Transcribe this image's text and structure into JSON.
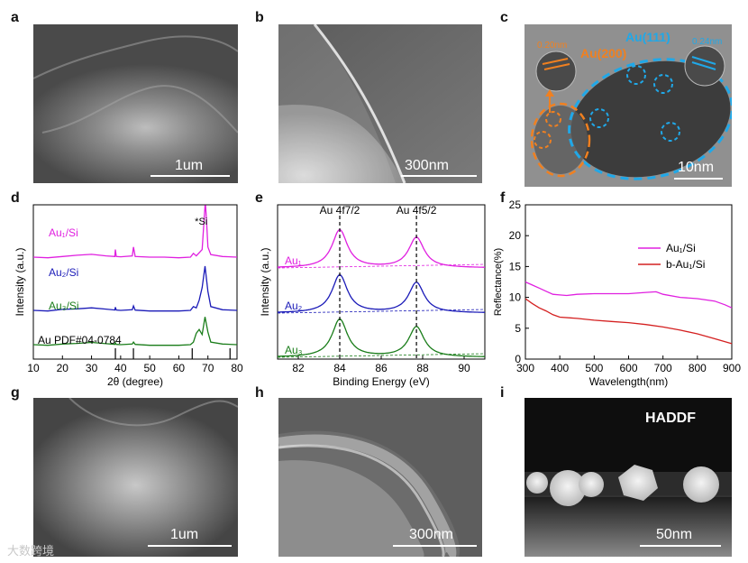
{
  "panels": {
    "a": {
      "label": "a",
      "scale": "1um"
    },
    "b": {
      "label": "b",
      "scale": "300nm"
    },
    "c": {
      "label": "c",
      "scale": "10nm",
      "lattice1": "0.20nm",
      "lattice2": "0.24nm",
      "plane_orange": "Au(200)",
      "plane_blue": "Au(111)"
    },
    "d": {
      "label": "d"
    },
    "e": {
      "label": "e"
    },
    "f": {
      "label": "f"
    },
    "g": {
      "label": "g",
      "scale": "1um"
    },
    "h": {
      "label": "h",
      "scale": "300nm"
    },
    "i": {
      "label": "i",
      "scale": "50nm",
      "mode": "HADDF"
    }
  },
  "watermark": "大数跨境",
  "colors": {
    "magenta": "#e020e0",
    "blue": "#1b1bb8",
    "green": "#1a7d1a",
    "red": "#d42020",
    "orange": "#f08020",
    "cyan": "#20a8e8"
  },
  "chart_data": [
    {
      "id": "d",
      "type": "line",
      "xlabel": "2θ (degree)",
      "ylabel": "Intensity (a.u.)",
      "xlim": [
        10,
        80
      ],
      "xticks": [
        10,
        20,
        30,
        40,
        50,
        60,
        70,
        80
      ],
      "reference_label": "Au PDF#04-0784",
      "reference_peaks": [
        38.2,
        44.4,
        64.6,
        77.6
      ],
      "annotation": "*Si",
      "series": [
        {
          "name": "Au₁/Si",
          "color": "#e020e0",
          "x": [
            10,
            15,
            20,
            25,
            30,
            35,
            38,
            38.2,
            38.5,
            40,
            44,
            44.4,
            45,
            50,
            55,
            60,
            64,
            65,
            66,
            68,
            69,
            69.2,
            69.5,
            70,
            71,
            75,
            80
          ],
          "y": [
            0.0,
            -0.05,
            0.05,
            0.15,
            0.22,
            0.1,
            0.05,
            0.6,
            0.05,
            0.03,
            0.1,
            0.8,
            0.05,
            0.0,
            0.0,
            -0.05,
            0.0,
            0.3,
            0.1,
            0.6,
            5.0,
            5.0,
            3.0,
            0.8,
            0.2,
            0.05,
            0.0
          ]
        },
        {
          "name": "Au₂/Si",
          "color": "#1b1bb8",
          "x": [
            10,
            15,
            20,
            25,
            30,
            35,
            38,
            38.2,
            38.5,
            40,
            44,
            44.4,
            45,
            50,
            55,
            60,
            64,
            65,
            66,
            67,
            68,
            69,
            70,
            71,
            75,
            80
          ],
          "y": [
            0.0,
            -0.05,
            0.08,
            0.12,
            0.2,
            0.1,
            0.03,
            0.25,
            0.03,
            0.0,
            0.05,
            0.35,
            0.02,
            -0.05,
            -0.05,
            -0.05,
            0.0,
            0.3,
            0.2,
            0.8,
            1.8,
            3.5,
            1.5,
            0.3,
            0.05,
            0.0
          ]
        },
        {
          "name": "Au₃/Si",
          "color": "#1a7d1a",
          "x": [
            10,
            15,
            20,
            25,
            30,
            35,
            38,
            38.2,
            38.5,
            40,
            44,
            44.4,
            45,
            50,
            55,
            60,
            64,
            65,
            66,
            67,
            68,
            69,
            70,
            71,
            75,
            80
          ],
          "y": [
            0.0,
            -0.05,
            0.05,
            0.1,
            0.18,
            0.08,
            0.02,
            0.15,
            0.02,
            0.0,
            0.05,
            0.2,
            0.02,
            -0.05,
            -0.05,
            -0.05,
            0.0,
            0.2,
            0.9,
            1.2,
            0.8,
            2.2,
            1.0,
            0.2,
            0.05,
            0.0
          ]
        }
      ]
    },
    {
      "id": "e",
      "type": "line",
      "xlabel": "Binding Energy (eV)",
      "ylabel": "Intensity (a.u.)",
      "xlim": [
        81,
        91
      ],
      "xticks": [
        82,
        84,
        86,
        88,
        90
      ],
      "peak_labels": [
        "Au 4f7/2",
        "Au 4f5/2"
      ],
      "peak_positions": [
        84.0,
        87.7
      ],
      "series": [
        {
          "name": "Au₁",
          "color": "#e020e0",
          "peak_heights": [
            1.0,
            0.8
          ]
        },
        {
          "name": "Au₂",
          "color": "#1b1bb8",
          "peak_heights": [
            1.0,
            0.8
          ]
        },
        {
          "name": "Au₃",
          "color": "#1a7d1a",
          "peak_heights": [
            1.0,
            0.8
          ]
        }
      ]
    },
    {
      "id": "f",
      "type": "line",
      "xlabel": "Wavelength(nm)",
      "ylabel": "Reflectance(%)",
      "xlim": [
        300,
        900
      ],
      "ylim": [
        0,
        25
      ],
      "xticks": [
        300,
        400,
        500,
        600,
        700,
        800,
        900
      ],
      "yticks": [
        0,
        5,
        10,
        15,
        20,
        25
      ],
      "legend_position": "top-right",
      "series": [
        {
          "name": "Au₁/Si",
          "color": "#e020e0",
          "x": [
            300,
            320,
            340,
            360,
            380,
            400,
            420,
            450,
            500,
            550,
            600,
            650,
            680,
            700,
            750,
            800,
            850,
            880,
            900
          ],
          "y": [
            12.5,
            12.0,
            11.5,
            11.0,
            10.5,
            10.4,
            10.3,
            10.5,
            10.6,
            10.6,
            10.6,
            10.8,
            10.9,
            10.5,
            10.0,
            9.8,
            9.4,
            8.8,
            8.3
          ]
        },
        {
          "name": "b-Au₁/Si",
          "color": "#d42020",
          "x": [
            300,
            320,
            340,
            360,
            380,
            400,
            450,
            500,
            550,
            600,
            650,
            700,
            750,
            800,
            850,
            900
          ],
          "y": [
            9.8,
            9.0,
            8.3,
            7.8,
            7.2,
            6.8,
            6.6,
            6.3,
            6.1,
            5.9,
            5.6,
            5.2,
            4.7,
            4.1,
            3.3,
            2.5
          ]
        }
      ]
    }
  ]
}
